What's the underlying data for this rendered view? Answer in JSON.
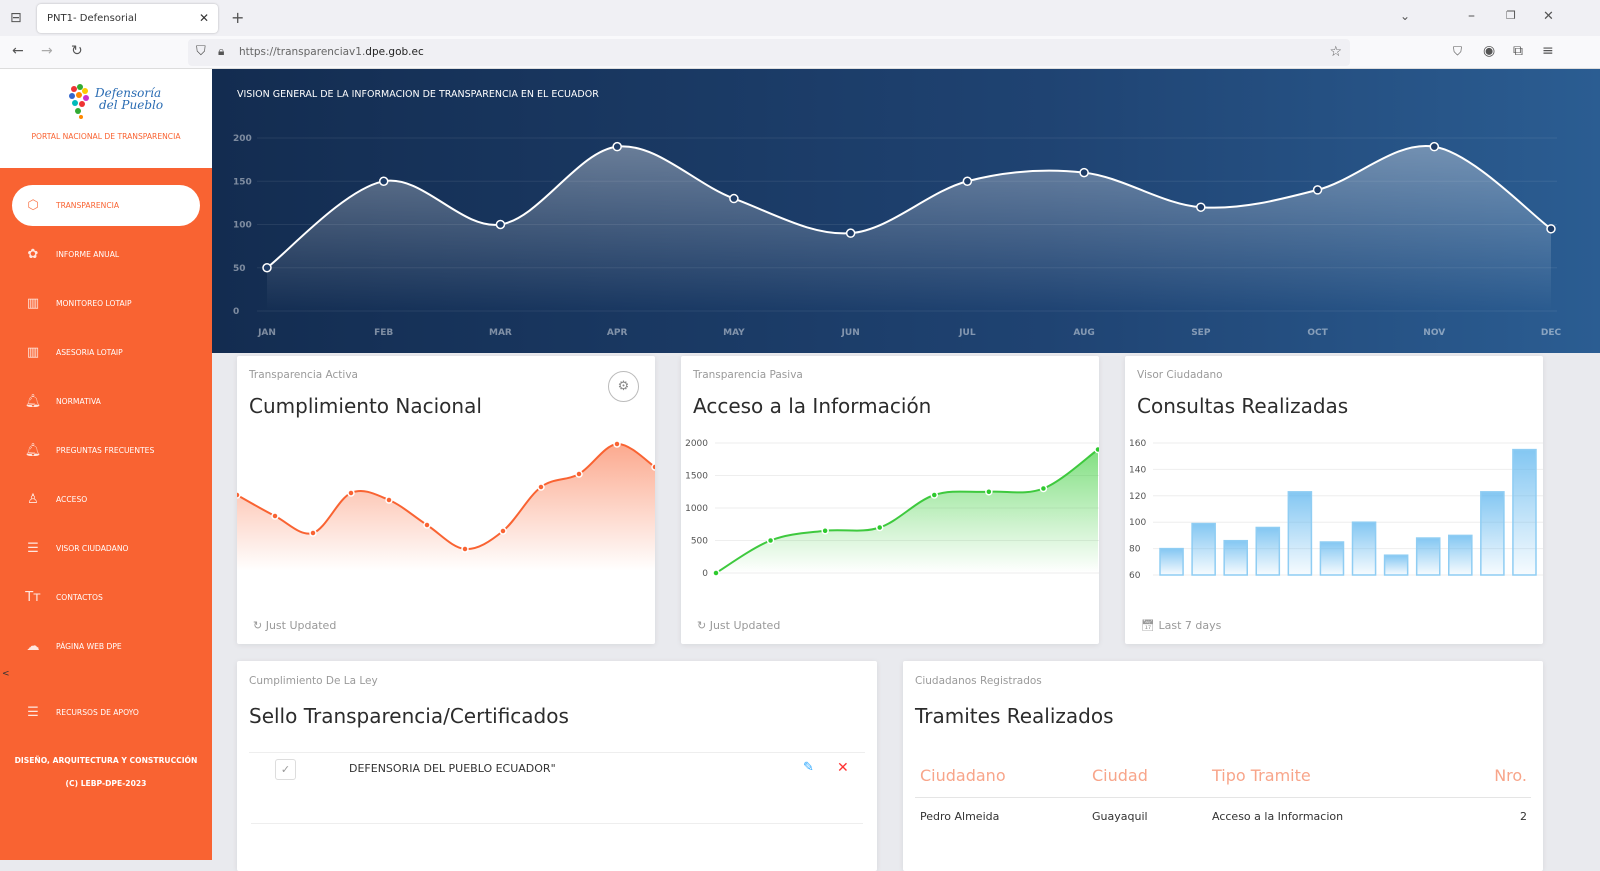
{
  "browser": {
    "tab_title": "PNT1- Defensorial",
    "url_prefix": "https://transparenciav1.",
    "url_domain": "dpe.gob.ec"
  },
  "sidebar": {
    "logo_line1": "Defensoría",
    "logo_line2": "del Pueblo",
    "portal_title": "PORTAL NACIONAL DE TRANSPARENCIA",
    "items": [
      {
        "label": "TRANSPARENCIA",
        "icon": "box-icon",
        "glyph": "⬡",
        "active": true
      },
      {
        "label": "INFORME ANUAL",
        "icon": "atom-icon",
        "glyph": "✿"
      },
      {
        "label": "MONITOREO LOTAIP",
        "icon": "map-icon",
        "glyph": "▥"
      },
      {
        "label": "ASESORIA LOTAIP",
        "icon": "map-icon",
        "glyph": "▥"
      },
      {
        "label": "NORMATIVA",
        "icon": "bell-icon",
        "glyph": "🔔︎"
      },
      {
        "label": "PREGUNTAS FRECUENTES",
        "icon": "bell-icon",
        "glyph": "🔔︎"
      },
      {
        "label": "ACCESO",
        "icon": "user-icon",
        "glyph": "♙"
      },
      {
        "label": "VISOR CIUDADANO",
        "icon": "list-icon",
        "glyph": "☰"
      },
      {
        "label": "CONTACTOS",
        "icon": "text-icon",
        "glyph": "Tт"
      },
      {
        "label": "PÁGINA WEB DPE",
        "icon": "cloud-download-icon",
        "glyph": "☁"
      },
      {
        "label": "RECURSOS DE APOYO",
        "icon": "list-icon",
        "glyph": "☰"
      }
    ],
    "collapse_glyph": "<",
    "credits_line1": "DISEÑO, ARQUITECTURA Y CONSTRUCCIÓN",
    "credits_line2": "(C) LEBP-DPE-2023"
  },
  "header": {
    "title": "VISION GENERAL DE LA INFORMACION DE TRANSPARENCIA EN EL ECUADOR"
  },
  "cards": [
    {
      "subtitle": "Transparencia Activa",
      "title": "Cumplimiento Nacional",
      "footer": "Just Updated",
      "color": "#f96332"
    },
    {
      "subtitle": "Transparencia Pasiva",
      "title": "Acceso a la Información",
      "footer": "Just Updated",
      "color": "#2dca2d"
    },
    {
      "subtitle": "Visor Ciudadano",
      "title": "Consultas Realizadas",
      "footer": "Last 7 days",
      "color": "#5ab4ee"
    }
  ],
  "sello": {
    "subtitle": "Cumplimiento De La Ley",
    "title": "Sello Transparencia/Certificados",
    "row_text": "DEFENSORIA DEL PUEBLO ECUADOR\""
  },
  "tramites": {
    "subtitle": "Ciudadanos Registrados",
    "title": "Tramites Realizados",
    "columns": [
      "Ciudadano",
      "Ciudad",
      "Tipo Tramite",
      "Nro."
    ],
    "rows": [
      [
        "Pedro Almeida",
        "Guayaquil",
        "Acceso a la Informacion",
        "2"
      ]
    ]
  },
  "chart_data": [
    {
      "type": "area",
      "categories": [
        "JAN",
        "FEB",
        "MAR",
        "APR",
        "MAY",
        "JUN",
        "JUL",
        "AUG",
        "SEP",
        "OCT",
        "NOV",
        "DEC"
      ],
      "values": [
        50,
        150,
        100,
        190,
        130,
        90,
        150,
        160,
        120,
        140,
        190,
        95
      ],
      "yticks": [
        "0",
        "50",
        "100",
        "150",
        "200"
      ],
      "ylim": [
        0,
        200
      ],
      "grid": true
    },
    {
      "type": "area",
      "values": [
        105,
        84,
        67,
        107,
        100,
        75,
        51,
        69,
        113,
        126,
        156,
        133
      ],
      "grid": false
    },
    {
      "type": "area",
      "values": [
        0,
        500,
        650,
        700,
        1200,
        1250,
        1300,
        1900
      ],
      "yticks": [
        "0",
        "500",
        "1000",
        "1500",
        "2000"
      ],
      "ylim": [
        0,
        2000
      ],
      "grid": true
    },
    {
      "type": "bar",
      "values": [
        80,
        99,
        86,
        96,
        123,
        85,
        100,
        75,
        88,
        90,
        123,
        155
      ],
      "yticks": [
        "60",
        "80",
        "100",
        "120",
        "140",
        "160"
      ],
      "ylim": [
        60,
        160
      ],
      "grid": true
    }
  ]
}
